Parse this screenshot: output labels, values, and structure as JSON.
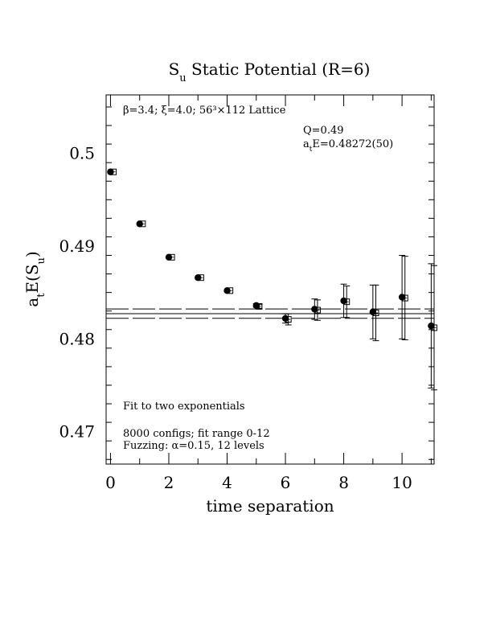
{
  "chart_data": {
    "type": "scatter",
    "title_main": "S",
    "title_sub": "u",
    "title_rest": " Static Potential (R=6)",
    "xlabel": "time separation",
    "ylabel_main": "a",
    "ylabel_sub1": "t",
    "ylabel_mid": "E(S",
    "ylabel_sub2": "u",
    "ylabel_end": ")",
    "xlim": [
      -0.15,
      11.1
    ],
    "ylim": [
      0.4665,
      0.5063
    ],
    "xticks": [
      0,
      2,
      4,
      6,
      8,
      10
    ],
    "xtick_labels": [
      "0",
      "2",
      "4",
      "6",
      "8",
      "10"
    ],
    "yticks": [
      0.47,
      0.48,
      0.49,
      0.5
    ],
    "ytick_labels": [
      "0.47",
      "0.48",
      "0.49",
      "0.5"
    ],
    "lattice_label": "β=3.4; ξ=4.0; 56³×112 Lattice",
    "q_label": "Q=0.49",
    "energy_label_pre": "a",
    "energy_label_sub": "t",
    "energy_label_post": "E=0.48272(50)",
    "fit_label": "Fit to two exponentials",
    "configs_label": "8000 configs; fit range 0-12",
    "fuzzing_label": "Fuzzing: α=0.15, 12 levels",
    "fit_value": 0.48272,
    "fit_error": 0.0005,
    "series": [
      {
        "marker": "filled-circle",
        "x": [
          0,
          1,
          2,
          3,
          4,
          5,
          6,
          7,
          8,
          9,
          10,
          11
        ],
        "y": [
          0.498,
          0.4924,
          0.4888,
          0.4866,
          0.4852,
          0.4836,
          0.4822,
          0.4832,
          0.4841,
          0.4829,
          0.4845,
          0.4814
        ],
        "err": [
          0.0001,
          0.0001,
          0.0001,
          0.0001,
          0.0001,
          0.0002,
          0.0005,
          0.0011,
          0.0018,
          0.0029,
          0.0045,
          0.0067
        ]
      },
      {
        "marker": "open-square",
        "x": [
          0.1,
          1.1,
          2.1,
          3.1,
          4.1,
          5.1,
          6.1,
          7.1,
          8.1,
          9.1,
          10.1,
          11.1
        ],
        "y": [
          0.498,
          0.4924,
          0.4888,
          0.4866,
          0.4852,
          0.4835,
          0.4821,
          0.4831,
          0.484,
          0.4828,
          0.4844,
          0.4812
        ],
        "err": [
          0.0001,
          0.0001,
          0.0001,
          0.0001,
          0.0001,
          0.0002,
          0.0006,
          0.0011,
          0.0017,
          0.003,
          0.0045,
          0.0067
        ]
      }
    ]
  }
}
